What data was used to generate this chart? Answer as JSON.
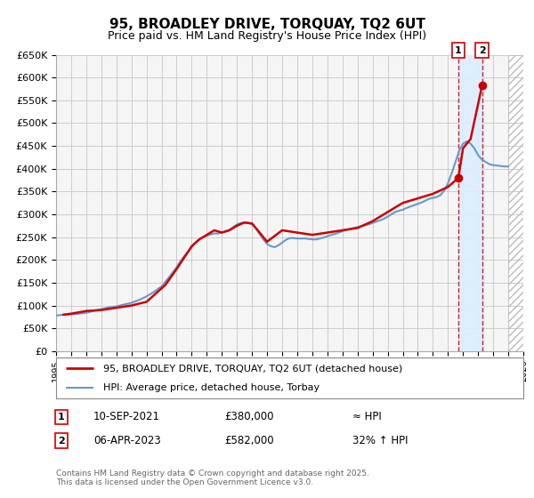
{
  "title": "95, BROADLEY DRIVE, TORQUAY, TQ2 6UT",
  "subtitle": "Price paid vs. HM Land Registry's House Price Index (HPI)",
  "title_fontsize": 11,
  "subtitle_fontsize": 9,
  "xlim": [
    1995,
    2026
  ],
  "ylim": [
    0,
    650000
  ],
  "yticks": [
    0,
    50000,
    100000,
    150000,
    200000,
    250000,
    300000,
    350000,
    400000,
    450000,
    500000,
    550000,
    600000,
    650000
  ],
  "ytick_labels": [
    "£0",
    "£50K",
    "£100K",
    "£150K",
    "£200K",
    "£250K",
    "£300K",
    "£350K",
    "£400K",
    "£450K",
    "£500K",
    "£550K",
    "£600K",
    "£650K"
  ],
  "xticks": [
    1995,
    1996,
    1997,
    1998,
    1999,
    2000,
    2001,
    2002,
    2003,
    2004,
    2005,
    2006,
    2007,
    2008,
    2009,
    2010,
    2011,
    2012,
    2013,
    2014,
    2015,
    2016,
    2017,
    2018,
    2019,
    2020,
    2021,
    2022,
    2023,
    2024,
    2025,
    2026
  ],
  "hpi_color": "#6699cc",
  "price_color": "#cc0000",
  "grid_color": "#cccccc",
  "background_color": "#ffffff",
  "plot_bg_color": "#f5f5f5",
  "hatch_color": "#bbbbbb",
  "shade_color": "#ddeeff",
  "marker1_date": 2021.69,
  "marker1_value": 380000,
  "marker2_date": 2023.26,
  "marker2_value": 582000,
  "marker1_label": "1",
  "marker2_label": "2",
  "legend_line1": "95, BROADLEY DRIVE, TORQUAY, TQ2 6UT (detached house)",
  "legend_line2": "HPI: Average price, detached house, Torbay",
  "table_row1_num": "1",
  "table_row1_date": "10-SEP-2021",
  "table_row1_price": "£380,000",
  "table_row1_hpi": "≈ HPI",
  "table_row2_num": "2",
  "table_row2_date": "06-APR-2023",
  "table_row2_price": "£582,000",
  "table_row2_hpi": "32% ↑ HPI",
  "footnote": "Contains HM Land Registry data © Crown copyright and database right 2025.\nThis data is licensed under the Open Government Licence v3.0.",
  "hpi_x": [
    1995.0,
    1995.25,
    1995.5,
    1995.75,
    1996.0,
    1996.25,
    1996.5,
    1996.75,
    1997.0,
    1997.25,
    1997.5,
    1997.75,
    1998.0,
    1998.25,
    1998.5,
    1998.75,
    1999.0,
    1999.25,
    1999.5,
    1999.75,
    2000.0,
    2000.25,
    2000.5,
    2000.75,
    2001.0,
    2001.25,
    2001.5,
    2001.75,
    2002.0,
    2002.25,
    2002.5,
    2002.75,
    2003.0,
    2003.25,
    2003.5,
    2003.75,
    2004.0,
    2004.25,
    2004.5,
    2004.75,
    2005.0,
    2005.25,
    2005.5,
    2005.75,
    2006.0,
    2006.25,
    2006.5,
    2006.75,
    2007.0,
    2007.25,
    2007.5,
    2007.75,
    2008.0,
    2008.25,
    2008.5,
    2008.75,
    2009.0,
    2009.25,
    2009.5,
    2009.75,
    2010.0,
    2010.25,
    2010.5,
    2010.75,
    2011.0,
    2011.25,
    2011.5,
    2011.75,
    2012.0,
    2012.25,
    2012.5,
    2012.75,
    2013.0,
    2013.25,
    2013.5,
    2013.75,
    2014.0,
    2014.25,
    2014.5,
    2014.75,
    2015.0,
    2015.25,
    2015.5,
    2015.75,
    2016.0,
    2016.25,
    2016.5,
    2016.75,
    2017.0,
    2017.25,
    2017.5,
    2017.75,
    2018.0,
    2018.25,
    2018.5,
    2018.75,
    2019.0,
    2019.25,
    2019.5,
    2019.75,
    2020.0,
    2020.25,
    2020.5,
    2020.75,
    2021.0,
    2021.25,
    2021.5,
    2021.75,
    2022.0,
    2022.25,
    2022.5,
    2022.75,
    2023.0,
    2023.25,
    2023.5,
    2023.75,
    2024.0,
    2024.25,
    2024.5,
    2024.75,
    2025.0
  ],
  "hpi_y": [
    78000,
    79000,
    79500,
    80000,
    80500,
    81000,
    82000,
    83000,
    84000,
    86000,
    88000,
    90000,
    92000,
    94000,
    96000,
    97000,
    98000,
    100000,
    102000,
    104000,
    106000,
    109000,
    112000,
    116000,
    120000,
    125000,
    130000,
    136000,
    142000,
    152000,
    162000,
    173000,
    184000,
    197000,
    208000,
    218000,
    228000,
    238000,
    245000,
    250000,
    253000,
    256000,
    258000,
    258000,
    260000,
    263000,
    266000,
    272000,
    278000,
    281000,
    282000,
    281000,
    278000,
    270000,
    257000,
    245000,
    235000,
    230000,
    228000,
    232000,
    238000,
    244000,
    248000,
    248000,
    247000,
    247000,
    247000,
    246000,
    245000,
    245000,
    247000,
    249000,
    252000,
    255000,
    257000,
    260000,
    263000,
    266000,
    268000,
    270000,
    272000,
    274000,
    276000,
    278000,
    281000,
    284000,
    287000,
    290000,
    295000,
    300000,
    305000,
    308000,
    310000,
    314000,
    317000,
    320000,
    323000,
    326000,
    330000,
    334000,
    336000,
    338000,
    342000,
    352000,
    368000,
    390000,
    415000,
    440000,
    455000,
    460000,
    455000,
    445000,
    430000,
    420000,
    415000,
    410000,
    408000,
    407000,
    406000,
    405000,
    405000
  ],
  "price_x": [
    1995.5,
    1996.0,
    1997.0,
    1998.0,
    1999.0,
    2000.0,
    2001.0,
    2002.25,
    2003.0,
    2004.0,
    2004.5,
    2005.0,
    2005.5,
    2006.0,
    2006.5,
    2007.0,
    2007.5,
    2008.0,
    2009.0,
    2010.0,
    2011.0,
    2012.0,
    2013.0,
    2014.0,
    2015.0,
    2016.0,
    2017.0,
    2017.5,
    2018.0,
    2019.0,
    2020.0,
    2021.0,
    2021.69,
    2022.0,
    2022.5,
    2023.26
  ],
  "price_y": [
    80000,
    82000,
    88000,
    90000,
    95000,
    100000,
    108000,
    145000,
    180000,
    230000,
    245000,
    255000,
    265000,
    260000,
    265000,
    275000,
    282000,
    280000,
    240000,
    265000,
    260000,
    255000,
    260000,
    265000,
    270000,
    285000,
    305000,
    315000,
    325000,
    335000,
    345000,
    360000,
    380000,
    445000,
    465000,
    582000
  ]
}
